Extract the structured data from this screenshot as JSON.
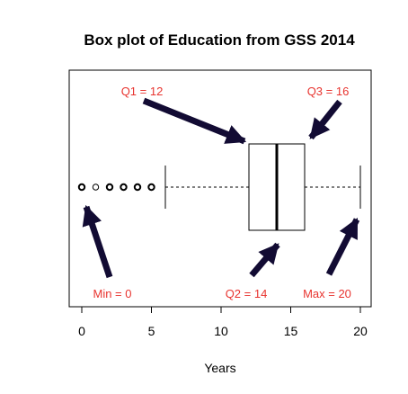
{
  "chart_data": {
    "type": "box",
    "title": "Box plot of Education from GSS 2014",
    "xlabel": "Years",
    "ylabel": "",
    "xlim": [
      -1,
      21
    ],
    "xticks": [
      0,
      5,
      10,
      15,
      20
    ],
    "box": {
      "min": 0,
      "q1": 12,
      "median": 14,
      "q3": 16,
      "max": 20,
      "whisker_low": 6,
      "whisker_high": 20
    },
    "outliers": [
      0,
      1,
      2,
      3,
      4,
      5
    ],
    "annotations": [
      {
        "label": "Q1 = 12",
        "target": "q1"
      },
      {
        "label": "Q3 = 16",
        "target": "q3"
      },
      {
        "label": "Min = 0",
        "target": "min"
      },
      {
        "label": "Q2 =  14",
        "target": "median"
      },
      {
        "label": "Max = 20",
        "target": "max"
      }
    ],
    "grid": false,
    "legend": "none"
  },
  "colors": {
    "annotation_text": "#e8342f",
    "arrow": "#120b33",
    "box_line": "#000000"
  }
}
